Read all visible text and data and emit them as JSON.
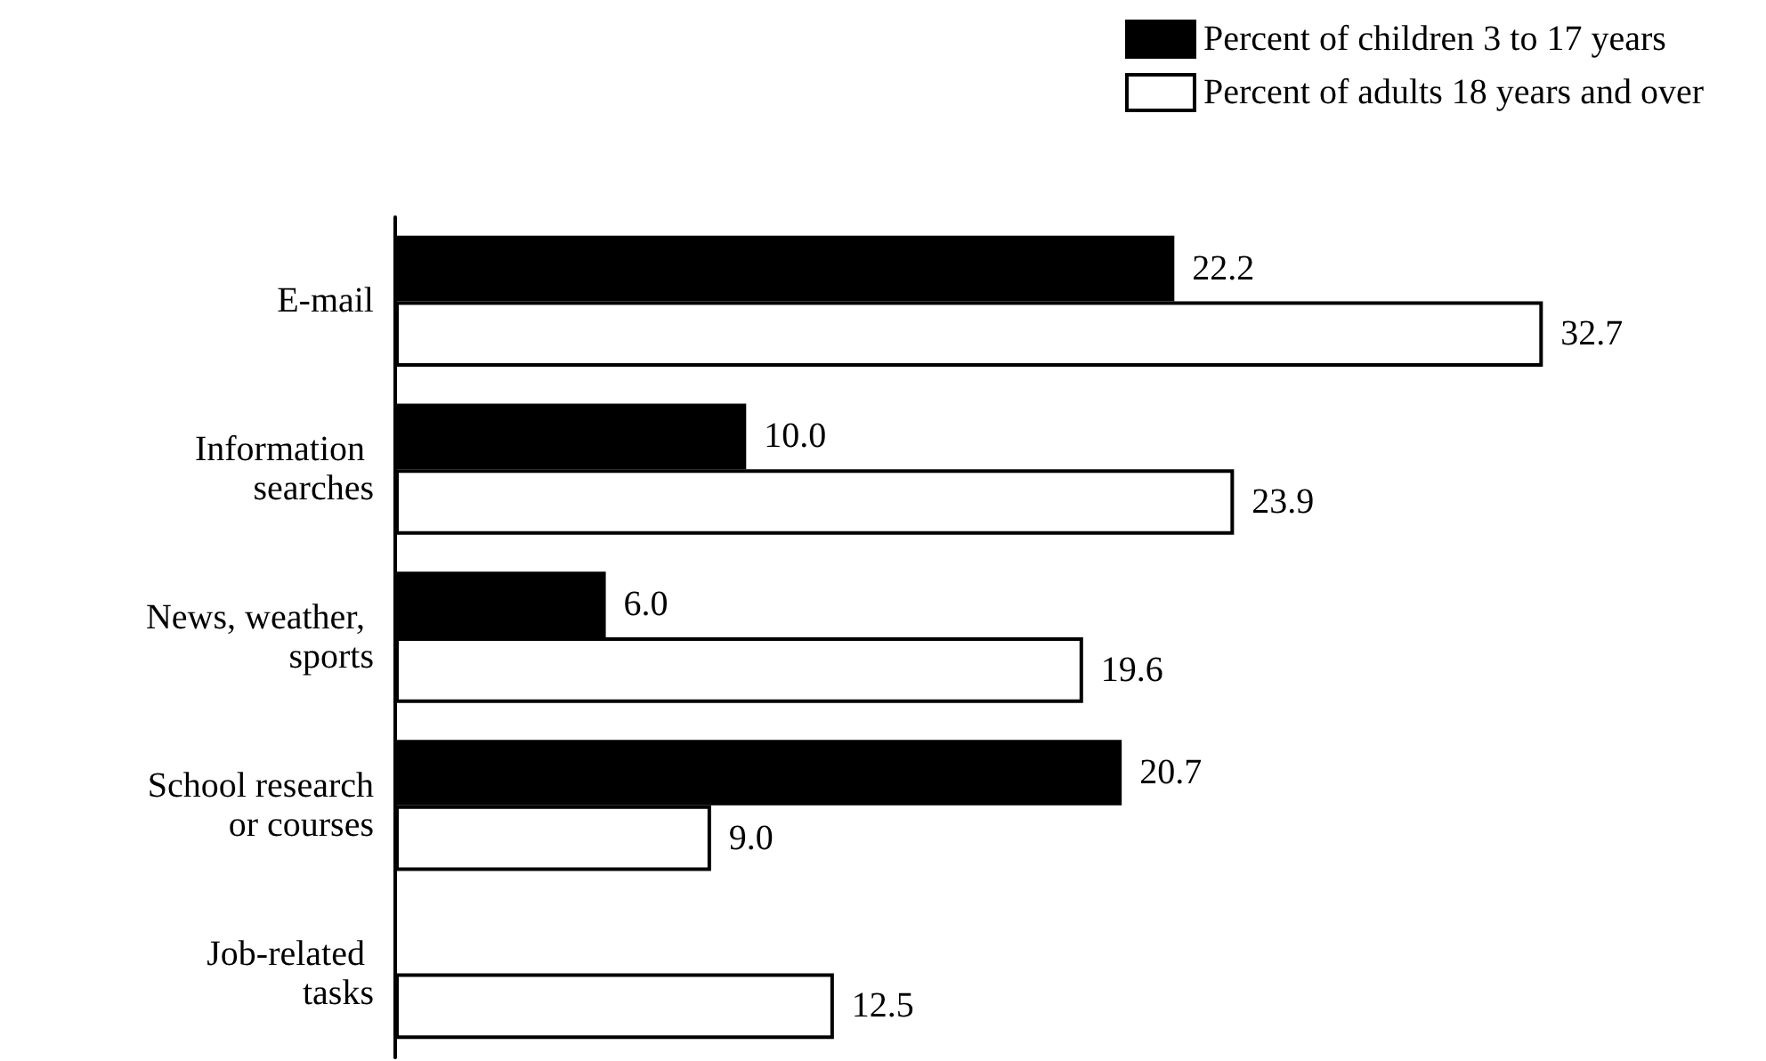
{
  "chart_data": {
    "type": "bar",
    "orientation": "horizontal",
    "categories": [
      "E-mail",
      "Information searches",
      "News, weather, sports",
      "School research or courses",
      "Job-related tasks"
    ],
    "series": [
      {
        "name": "Percent of children 3 to 17 years",
        "color": "#000000",
        "values": [
          22.2,
          10.0,
          6.0,
          20.7,
          null
        ],
        "value_labels": [
          "22.2",
          "10.0",
          "6.0",
          "20.7",
          null
        ]
      },
      {
        "name": "Percent of adults 18 years and over",
        "color": "#ffffff",
        "values": [
          32.7,
          23.9,
          19.6,
          9.0,
          12.5
        ],
        "value_labels": [
          "32.7",
          "23.9",
          "19.6",
          "9.0",
          "12.5"
        ]
      }
    ],
    "legend": "top right",
    "grid": false
  }
}
